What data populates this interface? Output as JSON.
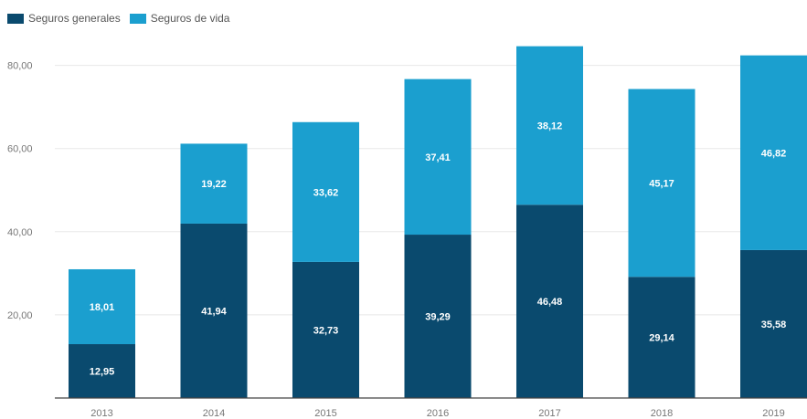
{
  "chart_data": {
    "type": "bar",
    "stacked": true,
    "categories": [
      "2013",
      "2014",
      "2015",
      "2016",
      "2017",
      "2018",
      "2019"
    ],
    "series": [
      {
        "name": "Seguros generales",
        "color": "#0a4a6e",
        "values": [
          12.95,
          41.94,
          32.73,
          39.29,
          46.48,
          29.14,
          35.58
        ],
        "labels": [
          "12,95",
          "41,94",
          "32,73",
          "39,29",
          "46,48",
          "29,14",
          "35,58"
        ]
      },
      {
        "name": "Seguros de vida",
        "color": "#1b9fcf",
        "values": [
          18.01,
          19.22,
          33.62,
          37.41,
          38.12,
          45.17,
          46.82
        ],
        "labels": [
          "18,01",
          "19,22",
          "33,62",
          "37,41",
          "38,12",
          "45,17",
          "46,82"
        ]
      }
    ],
    "yticks": [
      "20,00",
      "40,00",
      "60,00",
      "80,00"
    ],
    "ytick_values": [
      20,
      40,
      60,
      80
    ],
    "ylim": [
      0,
      90
    ],
    "grid": true,
    "legend_position": "top-left",
    "title": "",
    "xlabel": "",
    "ylabel": ""
  }
}
